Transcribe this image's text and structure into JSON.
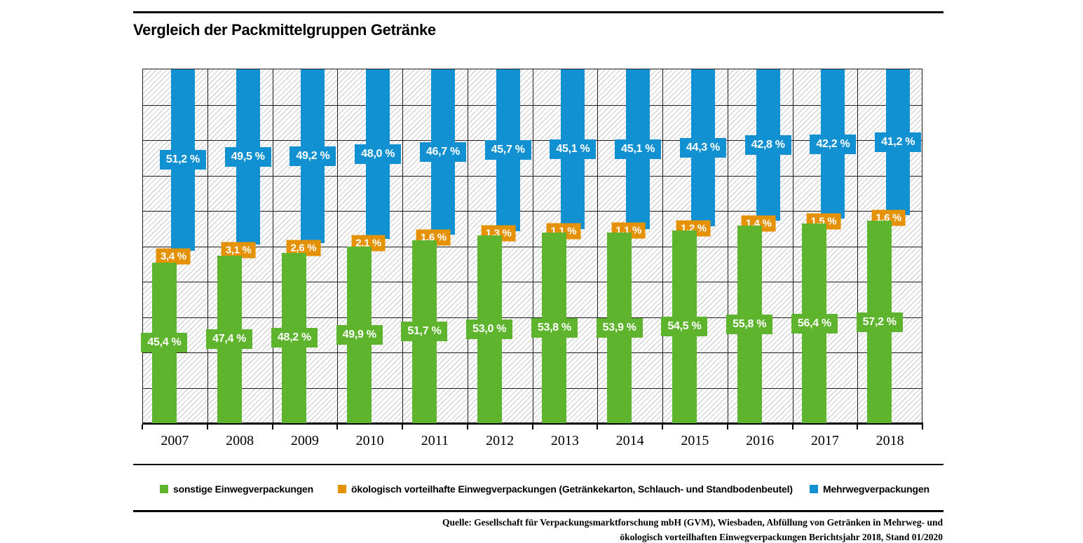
{
  "title": "Vergleich der Packmittelgruppen Getränke",
  "colors": {
    "green": "#5eb42c",
    "orange": "#e49204",
    "blue": "#1191d2",
    "grid": "#1f1f1f",
    "hatch": "#dadada"
  },
  "chart_data": {
    "type": "bar",
    "variant": "100%-stacked-offset-columns",
    "title": "Vergleich der Packmittelgruppen Getränke",
    "categories": [
      "2007",
      "2008",
      "2009",
      "2010",
      "2011",
      "2012",
      "2013",
      "2014",
      "2015",
      "2016",
      "2017",
      "2018"
    ],
    "series": [
      {
        "name": "sonstige Einwegverpackungen",
        "color_key": "green",
        "stack_position": "bottom",
        "values": [
          45.4,
          47.4,
          48.2,
          49.9,
          51.7,
          53.0,
          53.8,
          53.9,
          54.5,
          55.8,
          56.4,
          57.2
        ]
      },
      {
        "name": "ökologisch vorteilhafte Einwegverpackungen (Getränkekarton, Schlauch- und Standbodenbeutel)",
        "color_key": "orange",
        "stack_position": "middle",
        "values": [
          3.4,
          3.1,
          2.6,
          2.1,
          1.6,
          1.3,
          1.1,
          1.1,
          1.2,
          1.4,
          1.5,
          1.6
        ]
      },
      {
        "name": "Mehrwegverpackungen",
        "color_key": "blue",
        "stack_position": "top",
        "values": [
          51.2,
          49.5,
          49.2,
          48.0,
          46.7,
          45.7,
          45.1,
          45.1,
          44.3,
          42.8,
          42.2,
          41.2
        ]
      }
    ],
    "value_label_format": "#,# %",
    "ylim": [
      0,
      100
    ],
    "gridline_step": 10,
    "grid": true,
    "legend_position": "bottom"
  },
  "source": {
    "line1": "Quelle: Gesellschaft für Verpackungsmarktforschung mbH (GVM), Wiesbaden, Abfüllung von Getränken in Mehrweg- und",
    "line2": "ökologisch vorteilhaften Einwegverpackungen Berichtsjahr 2018, Stand 01/2020"
  }
}
